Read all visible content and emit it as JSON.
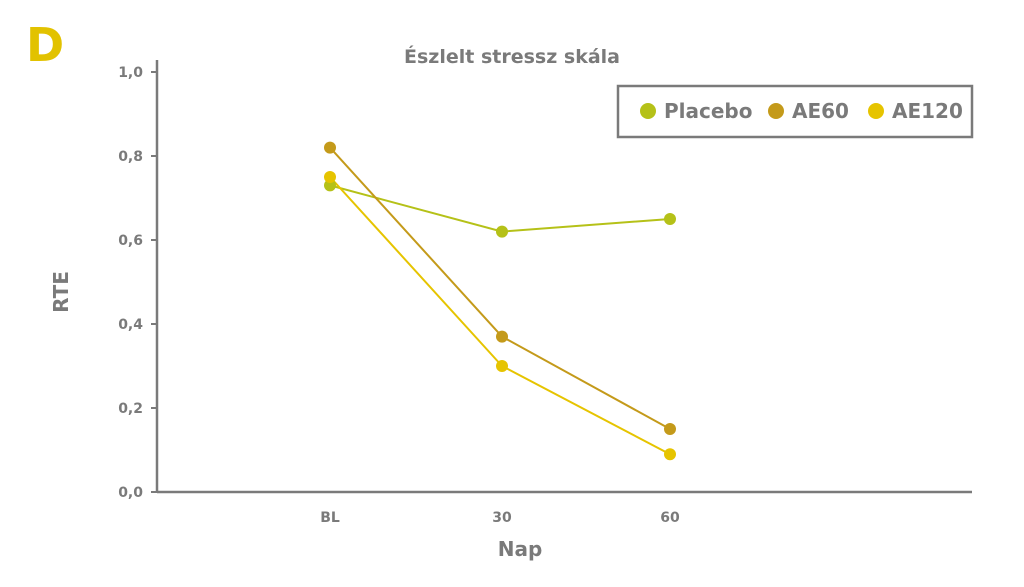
{
  "panel_label": "D",
  "chart_data": {
    "type": "line",
    "title": "Észlelt stressz skála",
    "xlabel": "Nap",
    "ylabel": "RTE",
    "categories": [
      "BL",
      "30",
      "60"
    ],
    "ylim": [
      0,
      1.0
    ],
    "yticks": [
      "0,0",
      "0,2",
      "0,4",
      "0,6",
      "0,8",
      "1,0"
    ],
    "ytick_values": [
      0,
      0.2,
      0.4,
      0.6,
      0.8,
      1.0
    ],
    "grid": false,
    "legend_position": "top-right",
    "series": [
      {
        "name": "Placebo",
        "color": "#b5c118",
        "values": [
          0.73,
          0.62,
          0.65
        ]
      },
      {
        "name": "AE60",
        "color": "#c49a1a",
        "values": [
          0.82,
          0.37,
          0.15
        ]
      },
      {
        "name": "AE120",
        "color": "#e6c400",
        "values": [
          0.75,
          0.3,
          0.09
        ]
      }
    ]
  }
}
